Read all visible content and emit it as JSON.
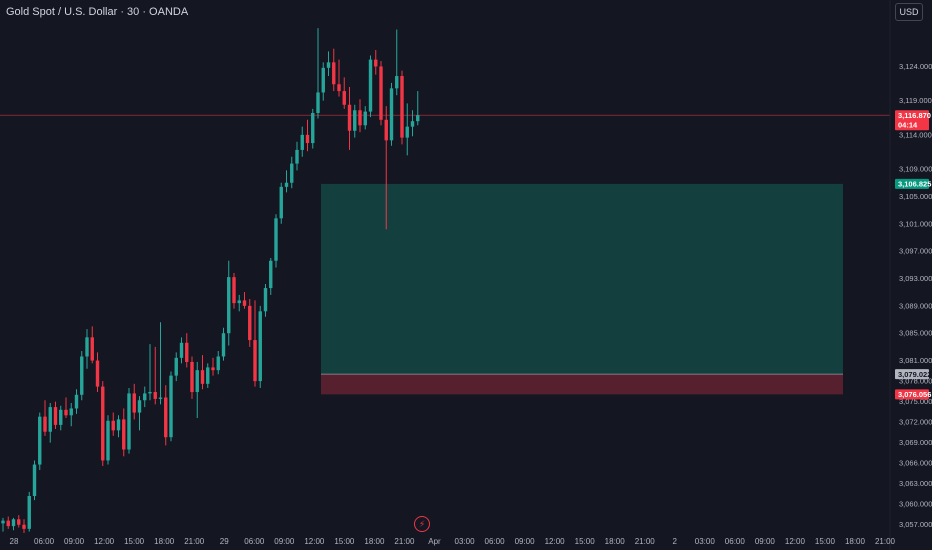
{
  "header": {
    "title": "Gold Spot / U.S. Dollar · 30 · OANDA",
    "currency": "USD"
  },
  "icons": {
    "event_marker": "lightning-bolt-icon"
  },
  "colors": {
    "background": "#141722",
    "up": "#26a69a",
    "down": "#f23645",
    "profit_zone": "#134240",
    "loss_zone": "#5b2130",
    "grid_text": "#b2b5be"
  },
  "chart_data": {
    "type": "candlestick",
    "title": "",
    "ylim": [
      3055.5,
      3130.5
    ],
    "y_ticks": [
      "3,124.000",
      "3,119.000",
      "3,114.000",
      "3,109.000",
      "3,105.000",
      "3,101.000",
      "3,097.000",
      "3,093.000",
      "3,089.000",
      "3,085.000",
      "3,081.000",
      "3,078.000",
      "3,075.000",
      "3,072.000",
      "3,069.000",
      "3,066.000",
      "3,063.000",
      "3,060.000",
      "3,057.000"
    ],
    "y_tick_values": [
      3124,
      3119,
      3114,
      3109,
      3105,
      3101,
      3097,
      3093,
      3089,
      3085,
      3081,
      3078,
      3075,
      3072,
      3069,
      3066,
      3063,
      3060,
      3057
    ],
    "x_ticks": [
      "28",
      "06:00",
      "09:00",
      "12:00",
      "15:00",
      "18:00",
      "21:00",
      "29",
      "06:00",
      "09:00",
      "12:00",
      "15:00",
      "18:00",
      "21:00",
      "Apr",
      "03:00",
      "06:00",
      "09:00",
      "12:00",
      "15:00",
      "18:00",
      "21:00",
      "2",
      "03:00",
      "06:00",
      "09:00",
      "12:00",
      "15:00",
      "18:00",
      "21:00"
    ],
    "current_price": {
      "value": 3116.87,
      "label": "3,116.870",
      "countdown": "04:14"
    },
    "position": {
      "target": {
        "value": 3106.825,
        "label": "3,106.825"
      },
      "entry": {
        "value": 3079.022,
        "label": "3,079.022"
      },
      "stop": {
        "value": 3076.056,
        "label": "3,076.056"
      }
    },
    "candles": [
      {
        "o": 3057.2,
        "h": 3058.0,
        "l": 3056.0,
        "c": 3057.6
      },
      {
        "o": 3057.6,
        "h": 3058.2,
        "l": 3056.4,
        "c": 3056.8
      },
      {
        "o": 3056.8,
        "h": 3058.0,
        "l": 3056.2,
        "c": 3057.8
      },
      {
        "o": 3057.8,
        "h": 3058.4,
        "l": 3056.6,
        "c": 3057.0
      },
      {
        "o": 3057.0,
        "h": 3057.8,
        "l": 3055.8,
        "c": 3056.4
      },
      {
        "o": 3056.4,
        "h": 3061.8,
        "l": 3056.0,
        "c": 3061.2
      },
      {
        "o": 3061.2,
        "h": 3066.4,
        "l": 3060.6,
        "c": 3065.8
      },
      {
        "o": 3065.8,
        "h": 3073.4,
        "l": 3065.0,
        "c": 3072.8
      },
      {
        "o": 3072.8,
        "h": 3075.2,
        "l": 3070.0,
        "c": 3070.6
      },
      {
        "o": 3070.6,
        "h": 3074.8,
        "l": 3069.0,
        "c": 3074.2
      },
      {
        "o": 3074.2,
        "h": 3075.0,
        "l": 3071.0,
        "c": 3071.6
      },
      {
        "o": 3071.6,
        "h": 3074.4,
        "l": 3070.8,
        "c": 3073.8
      },
      {
        "o": 3073.8,
        "h": 3075.6,
        "l": 3072.6,
        "c": 3073.0
      },
      {
        "o": 3073.0,
        "h": 3074.8,
        "l": 3071.4,
        "c": 3074.0
      },
      {
        "o": 3074.0,
        "h": 3076.8,
        "l": 3073.2,
        "c": 3076.0
      },
      {
        "o": 3076.0,
        "h": 3082.4,
        "l": 3075.2,
        "c": 3081.6
      },
      {
        "o": 3081.6,
        "h": 3085.6,
        "l": 3079.8,
        "c": 3084.4
      },
      {
        "o": 3084.4,
        "h": 3086.0,
        "l": 3080.6,
        "c": 3081.0
      },
      {
        "o": 3081.0,
        "h": 3082.2,
        "l": 3076.4,
        "c": 3077.2
      },
      {
        "o": 3077.2,
        "h": 3078.0,
        "l": 3065.6,
        "c": 3066.4
      },
      {
        "o": 3066.4,
        "h": 3073.0,
        "l": 3065.8,
        "c": 3072.2
      },
      {
        "o": 3072.2,
        "h": 3073.4,
        "l": 3070.0,
        "c": 3070.8
      },
      {
        "o": 3070.8,
        "h": 3073.0,
        "l": 3069.8,
        "c": 3072.4
      },
      {
        "o": 3072.4,
        "h": 3074.0,
        "l": 3067.0,
        "c": 3068.0
      },
      {
        "o": 3068.0,
        "h": 3077.0,
        "l": 3067.4,
        "c": 3076.2
      },
      {
        "o": 3076.2,
        "h": 3077.6,
        "l": 3072.4,
        "c": 3073.4
      },
      {
        "o": 3073.4,
        "h": 3075.8,
        "l": 3070.8,
        "c": 3075.2
      },
      {
        "o": 3075.2,
        "h": 3077.2,
        "l": 3074.2,
        "c": 3076.2
      },
      {
        "o": 3076.2,
        "h": 3083.4,
        "l": 3075.2,
        "c": 3076.4
      },
      {
        "o": 3076.4,
        "h": 3083.0,
        "l": 3074.6,
        "c": 3075.4
      },
      {
        "o": 3075.4,
        "h": 3086.6,
        "l": 3074.6,
        "c": 3075.6
      },
      {
        "o": 3075.6,
        "h": 3077.4,
        "l": 3068.6,
        "c": 3069.8
      },
      {
        "o": 3069.8,
        "h": 3079.4,
        "l": 3069.2,
        "c": 3078.8
      },
      {
        "o": 3078.8,
        "h": 3082.2,
        "l": 3078.0,
        "c": 3081.4
      },
      {
        "o": 3081.4,
        "h": 3084.4,
        "l": 3080.6,
        "c": 3083.6
      },
      {
        "o": 3083.6,
        "h": 3085.0,
        "l": 3080.0,
        "c": 3080.8
      },
      {
        "o": 3080.8,
        "h": 3081.6,
        "l": 3075.4,
        "c": 3076.4
      },
      {
        "o": 3076.4,
        "h": 3080.8,
        "l": 3072.6,
        "c": 3079.6
      },
      {
        "o": 3079.6,
        "h": 3081.8,
        "l": 3076.8,
        "c": 3077.6
      },
      {
        "o": 3077.6,
        "h": 3080.6,
        "l": 3077.0,
        "c": 3080.0
      },
      {
        "o": 3080.0,
        "h": 3081.4,
        "l": 3078.8,
        "c": 3079.6
      },
      {
        "o": 3079.6,
        "h": 3082.4,
        "l": 3079.0,
        "c": 3081.6
      },
      {
        "o": 3081.6,
        "h": 3085.8,
        "l": 3081.0,
        "c": 3085.0
      },
      {
        "o": 3085.0,
        "h": 3095.6,
        "l": 3083.2,
        "c": 3093.2
      },
      {
        "o": 3093.2,
        "h": 3093.8,
        "l": 3088.6,
        "c": 3089.4
      },
      {
        "o": 3089.4,
        "h": 3090.6,
        "l": 3088.2,
        "c": 3089.8
      },
      {
        "o": 3089.8,
        "h": 3091.0,
        "l": 3088.6,
        "c": 3089.0
      },
      {
        "o": 3089.0,
        "h": 3090.0,
        "l": 3083.0,
        "c": 3084.0
      },
      {
        "o": 3084.0,
        "h": 3089.8,
        "l": 3077.2,
        "c": 3078.0
      },
      {
        "o": 3078.0,
        "h": 3089.0,
        "l": 3077.0,
        "c": 3088.2
      },
      {
        "o": 3088.2,
        "h": 3092.2,
        "l": 3087.4,
        "c": 3091.6
      },
      {
        "o": 3091.6,
        "h": 3096.0,
        "l": 3090.6,
        "c": 3095.6
      },
      {
        "o": 3095.6,
        "h": 3102.4,
        "l": 3094.6,
        "c": 3101.8
      },
      {
        "o": 3101.8,
        "h": 3107.0,
        "l": 3101.0,
        "c": 3106.4
      },
      {
        "o": 3106.4,
        "h": 3108.8,
        "l": 3105.6,
        "c": 3107.0
      },
      {
        "o": 3107.0,
        "h": 3110.8,
        "l": 3106.2,
        "c": 3109.8
      },
      {
        "o": 3109.8,
        "h": 3113.0,
        "l": 3108.8,
        "c": 3111.8
      },
      {
        "o": 3111.8,
        "h": 3115.2,
        "l": 3110.8,
        "c": 3114.0
      },
      {
        "o": 3114.0,
        "h": 3116.2,
        "l": 3111.6,
        "c": 3112.8
      },
      {
        "o": 3112.8,
        "h": 3117.8,
        "l": 3112.0,
        "c": 3117.2
      },
      {
        "o": 3117.2,
        "h": 3129.6,
        "l": 3116.4,
        "c": 3120.2
      },
      {
        "o": 3120.2,
        "h": 3124.6,
        "l": 3119.0,
        "c": 3123.8
      },
      {
        "o": 3123.8,
        "h": 3126.2,
        "l": 3122.6,
        "c": 3124.6
      },
      {
        "o": 3124.6,
        "h": 3126.6,
        "l": 3120.4,
        "c": 3121.4
      },
      {
        "o": 3121.4,
        "h": 3125.0,
        "l": 3119.6,
        "c": 3120.4
      },
      {
        "o": 3120.4,
        "h": 3122.4,
        "l": 3117.8,
        "c": 3118.4
      },
      {
        "o": 3118.4,
        "h": 3121.0,
        "l": 3111.8,
        "c": 3114.6
      },
      {
        "o": 3114.6,
        "h": 3118.4,
        "l": 3113.6,
        "c": 3117.6
      },
      {
        "o": 3117.6,
        "h": 3119.2,
        "l": 3114.4,
        "c": 3115.4
      },
      {
        "o": 3115.4,
        "h": 3118.2,
        "l": 3114.8,
        "c": 3117.4
      },
      {
        "o": 3117.4,
        "h": 3125.6,
        "l": 3116.6,
        "c": 3125.0
      },
      {
        "o": 3125.0,
        "h": 3126.4,
        "l": 3122.8,
        "c": 3124.0
      },
      {
        "o": 3124.0,
        "h": 3124.8,
        "l": 3115.4,
        "c": 3116.2
      },
      {
        "o": 3116.2,
        "h": 3118.2,
        "l": 3100.2,
        "c": 3113.2
      },
      {
        "o": 3113.2,
        "h": 3121.6,
        "l": 3112.4,
        "c": 3120.8
      },
      {
        "o": 3120.8,
        "h": 3129.4,
        "l": 3119.8,
        "c": 3122.6
      },
      {
        "o": 3122.6,
        "h": 3123.4,
        "l": 3112.6,
        "c": 3113.6
      },
      {
        "o": 3113.6,
        "h": 3118.6,
        "l": 3111.0,
        "c": 3115.2
      },
      {
        "o": 3115.2,
        "h": 3117.6,
        "l": 3113.8,
        "c": 3116.0
      },
      {
        "o": 3116.0,
        "h": 3120.4,
        "l": 3115.4,
        "c": 3116.87
      }
    ]
  }
}
